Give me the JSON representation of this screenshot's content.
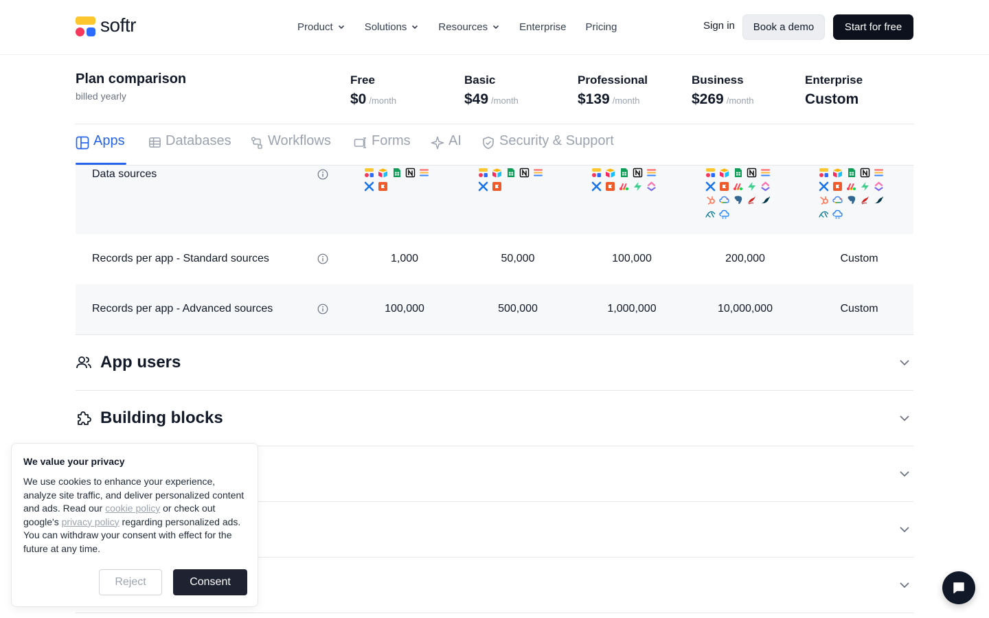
{
  "brand": {
    "name": "softr"
  },
  "nav": {
    "items": [
      {
        "label": "Product",
        "has_dropdown": true
      },
      {
        "label": "Solutions",
        "has_dropdown": true
      },
      {
        "label": "Resources",
        "has_dropdown": true
      },
      {
        "label": "Enterprise",
        "has_dropdown": false
      },
      {
        "label": "Pricing",
        "has_dropdown": false
      }
    ],
    "sign_in": "Sign in",
    "book_demo": "Book a demo",
    "start_free": "Start for free"
  },
  "plan_header": {
    "title": "Plan comparison",
    "subtitle": "billed yearly",
    "plans": [
      {
        "name": "Free",
        "price": "$0",
        "period": "/month"
      },
      {
        "name": "Basic",
        "price": "$49",
        "period": "/month"
      },
      {
        "name": "Professional",
        "price": "$139",
        "period": "/month"
      },
      {
        "name": "Business",
        "price": "$269",
        "period": "/month"
      },
      {
        "name": "Enterprise",
        "price": "Custom",
        "period": ""
      }
    ]
  },
  "tabs": [
    {
      "label": "Apps",
      "icon": "layout-icon",
      "active": true
    },
    {
      "label": "Databases",
      "icon": "table-icon",
      "active": false
    },
    {
      "label": "Workflows",
      "icon": "workflow-icon",
      "active": false
    },
    {
      "label": "Forms",
      "icon": "form-icon",
      "active": false
    },
    {
      "label": "AI",
      "icon": "sparkle-icon",
      "active": false
    },
    {
      "label": "Security & Support",
      "icon": "shield-icon",
      "active": false
    }
  ],
  "rows": [
    {
      "label": "Data sources",
      "data_sources": [
        [
          "softr-db",
          "airtable",
          "google-sheets",
          "notion",
          "smartsuite",
          "xano",
          "coda"
        ],
        [
          "softr-db",
          "airtable",
          "google-sheets",
          "notion",
          "smartsuite",
          "xano",
          "coda"
        ],
        [
          "softr-db",
          "airtable",
          "google-sheets",
          "notion",
          "smartsuite",
          "xano",
          "coda",
          "monday",
          "supabase",
          "clickup"
        ],
        [
          "softr-db",
          "airtable",
          "google-sheets",
          "notion",
          "smartsuite",
          "xano",
          "coda",
          "monday",
          "supabase",
          "clickup",
          "hubspot",
          "bigquery",
          "postgresql",
          "sql-server",
          "mariadb",
          "mysql",
          "api"
        ],
        [
          "softr-db",
          "airtable",
          "google-sheets",
          "notion",
          "smartsuite",
          "xano",
          "coda",
          "monday",
          "supabase",
          "clickup",
          "hubspot",
          "bigquery",
          "postgresql",
          "sql-server",
          "mariadb",
          "mysql",
          "api"
        ]
      ]
    },
    {
      "label": "Records per app - Standard sources",
      "values": [
        "1,000",
        "50,000",
        "100,000",
        "200,000",
        "Custom"
      ]
    },
    {
      "label": "Records per app - Advanced sources",
      "values": [
        "100,000",
        "500,000",
        "1,000,000",
        "10,000,000",
        "Custom"
      ]
    }
  ],
  "sections": [
    {
      "title": "App users",
      "icon": "users-icon"
    },
    {
      "title": "Building blocks",
      "icon": "puzzle-icon"
    },
    {
      "title": "",
      "icon": ""
    },
    {
      "title": "",
      "icon": ""
    },
    {
      "title": "",
      "icon": ""
    }
  ],
  "cookie": {
    "title": "We value your privacy",
    "text_1": "We use cookies to enhance your experience, analyze site traffic, and deliver personalized content and ads. Read our ",
    "link_1": "cookie policy",
    "text_2": " or check out google's ",
    "link_2": "privacy policy",
    "text_3": " regarding personalized ads. You can withdraw your consent with effect for the future at any time.",
    "reject": "Reject",
    "consent": "Consent"
  },
  "colors": {
    "accent": "#2563eb",
    "dark": "#0c111d",
    "row_shade": "#f7f8fa"
  }
}
